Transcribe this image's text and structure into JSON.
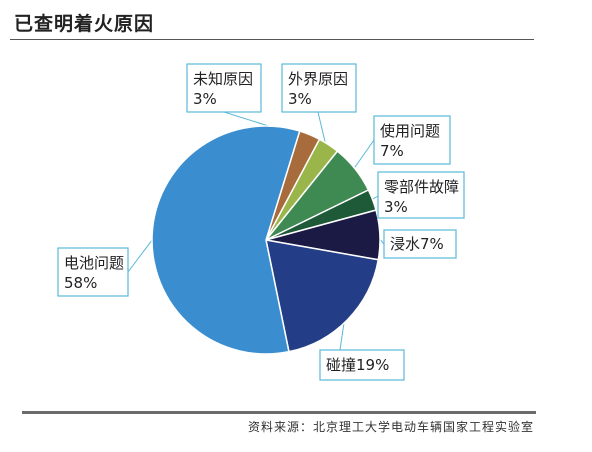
{
  "page_title": "已查明着火原因",
  "source_note": "资料来源：北京理工大学电动车辆国家工程实验室",
  "chart_data": {
    "type": "pie",
    "title": "已查明着火原因",
    "unit": "%",
    "slices": [
      {
        "label": "电池问题",
        "value": 58,
        "value_text": "58%",
        "color": "#3a8ed0"
      },
      {
        "label": "未知原因",
        "value": 3,
        "value_text": "3%",
        "color": "#a86c3c"
      },
      {
        "label": "外界原因",
        "value": 3,
        "value_text": "3%",
        "color": "#9ab54a"
      },
      {
        "label": "使用问题",
        "value": 7,
        "value_text": "7%",
        "color": "#3f8a52"
      },
      {
        "label": "零部件故障",
        "value": 3,
        "value_text": "3%",
        "color": "#1f5a38"
      },
      {
        "label": "浸水",
        "value": 7,
        "value_text": "7%",
        "color": "#1a1a45"
      },
      {
        "label": "碰撞",
        "value": 19,
        "value_text": "19%",
        "color": "#233e86"
      }
    ]
  }
}
